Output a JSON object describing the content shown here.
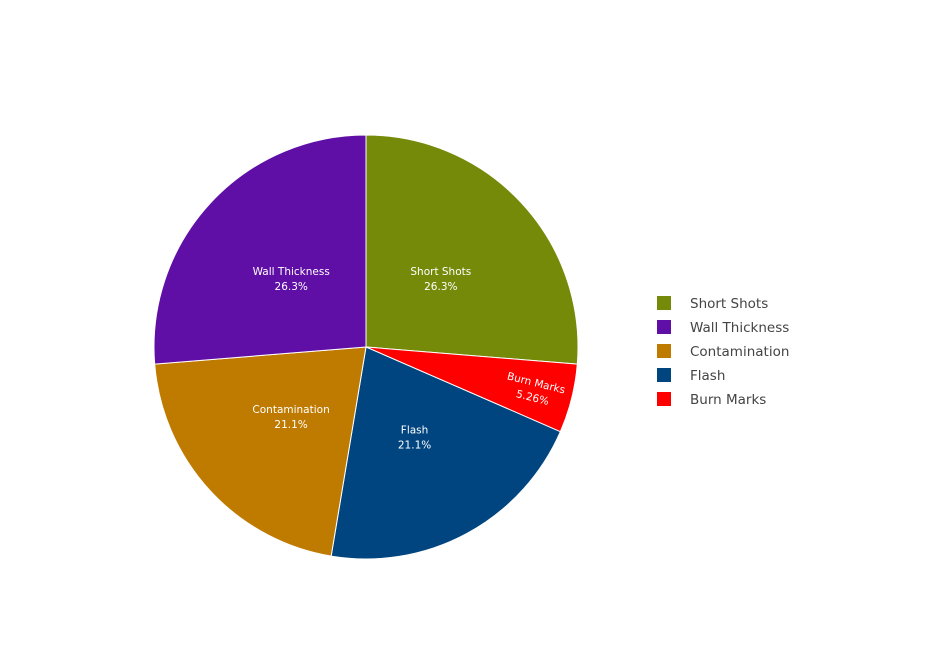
{
  "chart_data": {
    "type": "pie",
    "title": "",
    "sort": "descending",
    "direction": "clockwise",
    "start": "12 o'clock",
    "slices": [
      {
        "label": "Short Shots",
        "value": 26.3,
        "percent_text": "26.3%",
        "color": "#768a0a"
      },
      {
        "label": "Burn Marks",
        "value": 5.26,
        "percent_text": "5.26%",
        "color": "#ff0000"
      },
      {
        "label": "Flash",
        "value": 21.1,
        "percent_text": "21.1%",
        "color": "#00457f"
      },
      {
        "label": "Contamination",
        "value": 21.1,
        "percent_text": "21.1%",
        "color": "#bf7a00"
      },
      {
        "label": "Wall Thickness",
        "value": 26.3,
        "percent_text": "26.3%",
        "color": "#5f0ea6"
      }
    ],
    "legend": {
      "position": "right",
      "entries": [
        "Short Shots",
        "Wall Thickness",
        "Contamination",
        "Flash",
        "Burn Marks"
      ]
    }
  }
}
